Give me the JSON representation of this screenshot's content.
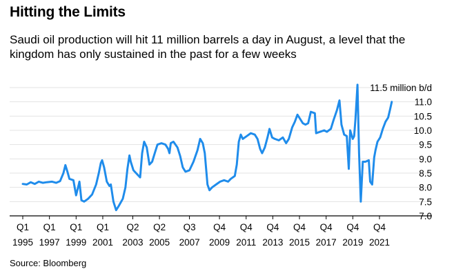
{
  "title": "Hitting the Limits",
  "subtitle": "Saudi oil production will hit 11 million barrels a day in August, a level that the kingdom has only sustained in the past for a few weeks",
  "source": "Source: Bloomberg",
  "chart_data": {
    "type": "line",
    "title": "Hitting the Limits",
    "unit_label": "11.5 million b/d",
    "ylim": [
      7.0,
      11.5
    ],
    "y_ticks": [
      {
        "value": 11.5,
        "label": "11.5 million b/d"
      },
      {
        "value": 11.0,
        "label": "11.0"
      },
      {
        "value": 10.5,
        "label": "10.5"
      },
      {
        "value": 10.0,
        "label": "10.0"
      },
      {
        "value": 9.5,
        "label": "9.5"
      },
      {
        "value": 9.0,
        "label": "9.0"
      },
      {
        "value": 8.5,
        "label": "8.5"
      },
      {
        "value": 8.0,
        "label": "8.0"
      },
      {
        "value": 7.5,
        "label": "7.5"
      },
      {
        "value": 7.0,
        "label": "7.0"
      }
    ],
    "xlim": [
      1995.0,
      2022.67
    ],
    "x_ticks": [
      {
        "value": 1995.0,
        "quarter": "Q1",
        "year": "1995"
      },
      {
        "value": 1997.0,
        "quarter": "Q1",
        "year": "1997"
      },
      {
        "value": 1999.0,
        "quarter": "Q1",
        "year": "1999"
      },
      {
        "value": 2001.0,
        "quarter": "Q1",
        "year": "2001"
      },
      {
        "value": 2003.25,
        "quarter": "Q2",
        "year": "2003"
      },
      {
        "value": 2005.25,
        "quarter": "Q2",
        "year": "2005"
      },
      {
        "value": 2007.5,
        "quarter": "Q3",
        "year": "2007"
      },
      {
        "value": 2009.75,
        "quarter": "Q4",
        "year": "2009"
      },
      {
        "value": 2011.75,
        "quarter": "Q4",
        "year": "2011"
      },
      {
        "value": 2013.75,
        "quarter": "Q4",
        "year": "2013"
      },
      {
        "value": 2015.75,
        "quarter": "Q4",
        "year": "2015"
      },
      {
        "value": 2017.75,
        "quarter": "Q4",
        "year": "2017"
      },
      {
        "value": 2019.75,
        "quarter": "Q4",
        "year": "2019"
      },
      {
        "value": 2021.75,
        "quarter": "Q4",
        "year": "2021"
      }
    ],
    "grid": true,
    "series": [
      {
        "color": "#1f8ceb",
        "points": [
          [
            1995.0,
            8.12
          ],
          [
            1995.3,
            8.1
          ],
          [
            1995.6,
            8.18
          ],
          [
            1995.9,
            8.12
          ],
          [
            1996.2,
            8.2
          ],
          [
            1996.5,
            8.16
          ],
          [
            1996.8,
            8.18
          ],
          [
            1997.2,
            8.2
          ],
          [
            1997.5,
            8.16
          ],
          [
            1997.8,
            8.22
          ],
          [
            1998.05,
            8.5
          ],
          [
            1998.2,
            8.78
          ],
          [
            1998.35,
            8.55
          ],
          [
            1998.5,
            8.3
          ],
          [
            1998.8,
            8.25
          ],
          [
            1999.0,
            7.72
          ],
          [
            1999.2,
            8.1
          ],
          [
            1999.25,
            8.2
          ],
          [
            1999.4,
            7.55
          ],
          [
            1999.6,
            7.5
          ],
          [
            1999.9,
            7.6
          ],
          [
            2000.2,
            7.75
          ],
          [
            2000.5,
            8.1
          ],
          [
            2000.7,
            8.5
          ],
          [
            2000.85,
            8.85
          ],
          [
            2000.95,
            8.95
          ],
          [
            2001.1,
            8.7
          ],
          [
            2001.3,
            8.2
          ],
          [
            2001.5,
            8.05
          ],
          [
            2001.6,
            8.1
          ],
          [
            2001.8,
            7.5
          ],
          [
            2002.0,
            7.2
          ],
          [
            2002.2,
            7.35
          ],
          [
            2002.5,
            7.6
          ],
          [
            2002.7,
            8.0
          ],
          [
            2002.85,
            8.65
          ],
          [
            2003.0,
            9.12
          ],
          [
            2003.1,
            8.9
          ],
          [
            2003.3,
            8.6
          ],
          [
            2003.6,
            8.45
          ],
          [
            2003.8,
            8.35
          ],
          [
            2003.95,
            9.2
          ],
          [
            2004.1,
            9.6
          ],
          [
            2004.3,
            9.4
          ],
          [
            2004.5,
            8.8
          ],
          [
            2004.7,
            8.9
          ],
          [
            2004.9,
            9.2
          ],
          [
            2005.1,
            9.5
          ],
          [
            2005.4,
            9.55
          ],
          [
            2005.7,
            9.5
          ],
          [
            2005.9,
            9.35
          ],
          [
            2006.0,
            9.2
          ],
          [
            2006.1,
            9.55
          ],
          [
            2006.3,
            9.6
          ],
          [
            2006.6,
            9.4
          ],
          [
            2006.8,
            9.1
          ],
          [
            2007.0,
            8.7
          ],
          [
            2007.2,
            8.55
          ],
          [
            2007.5,
            8.6
          ],
          [
            2007.8,
            8.9
          ],
          [
            2008.1,
            9.3
          ],
          [
            2008.3,
            9.7
          ],
          [
            2008.5,
            9.55
          ],
          [
            2008.65,
            9.2
          ],
          [
            2008.85,
            8.1
          ],
          [
            2009.0,
            7.9
          ],
          [
            2009.2,
            8.0
          ],
          [
            2009.5,
            8.1
          ],
          [
            2009.8,
            8.2
          ],
          [
            2010.1,
            8.25
          ],
          [
            2010.4,
            8.2
          ],
          [
            2010.6,
            8.3
          ],
          [
            2010.9,
            8.4
          ],
          [
            2011.05,
            8.8
          ],
          [
            2011.2,
            9.6
          ],
          [
            2011.35,
            9.85
          ],
          [
            2011.5,
            9.7
          ],
          [
            2011.8,
            9.8
          ],
          [
            2012.1,
            9.9
          ],
          [
            2012.4,
            9.85
          ],
          [
            2012.6,
            9.7
          ],
          [
            2012.8,
            9.35
          ],
          [
            2012.95,
            9.2
          ],
          [
            2013.15,
            9.4
          ],
          [
            2013.35,
            9.75
          ],
          [
            2013.5,
            10.05
          ],
          [
            2013.7,
            9.75
          ],
          [
            2013.9,
            9.7
          ],
          [
            2014.2,
            9.65
          ],
          [
            2014.5,
            9.75
          ],
          [
            2014.75,
            9.55
          ],
          [
            2014.95,
            9.7
          ],
          [
            2015.2,
            10.1
          ],
          [
            2015.4,
            10.3
          ],
          [
            2015.6,
            10.55
          ],
          [
            2015.8,
            10.4
          ],
          [
            2016.0,
            10.25
          ],
          [
            2016.2,
            10.2
          ],
          [
            2016.4,
            10.25
          ],
          [
            2016.6,
            10.65
          ],
          [
            2016.9,
            10.6
          ],
          [
            2017.0,
            9.9
          ],
          [
            2017.3,
            9.95
          ],
          [
            2017.6,
            10.0
          ],
          [
            2017.8,
            9.95
          ],
          [
            2018.1,
            10.05
          ],
          [
            2018.3,
            10.35
          ],
          [
            2018.55,
            10.7
          ],
          [
            2018.75,
            11.05
          ],
          [
            2018.9,
            10.2
          ],
          [
            2019.1,
            9.85
          ],
          [
            2019.3,
            9.8
          ],
          [
            2019.45,
            8.65
          ],
          [
            2019.55,
            10.0
          ],
          [
            2019.75,
            9.7
          ],
          [
            2019.85,
            9.8
          ],
          [
            2019.95,
            10.4
          ],
          [
            2020.1,
            11.6
          ],
          [
            2020.22,
            9.2
          ],
          [
            2020.35,
            7.5
          ],
          [
            2020.5,
            8.9
          ],
          [
            2020.7,
            8.9
          ],
          [
            2020.95,
            8.95
          ],
          [
            2021.05,
            8.2
          ],
          [
            2021.2,
            8.1
          ],
          [
            2021.35,
            9.05
          ],
          [
            2021.45,
            9.3
          ],
          [
            2021.6,
            9.6
          ],
          [
            2021.8,
            9.75
          ],
          [
            2022.0,
            10.05
          ],
          [
            2022.2,
            10.3
          ],
          [
            2022.4,
            10.45
          ],
          [
            2022.55,
            10.75
          ],
          [
            2022.67,
            11.0
          ]
        ]
      }
    ]
  }
}
